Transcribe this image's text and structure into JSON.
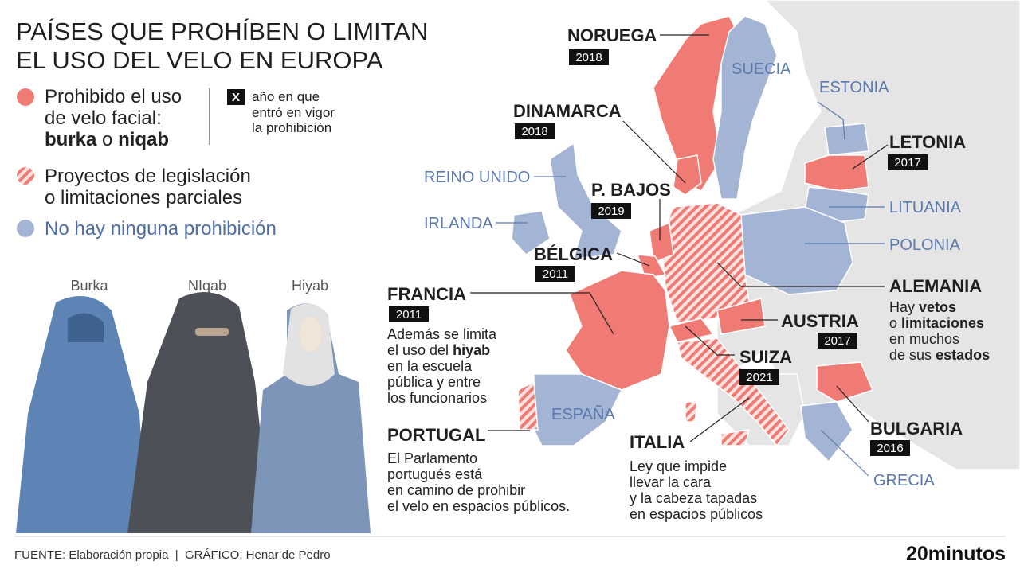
{
  "header": {
    "title_lines": [
      "PAÍSES QUE PROHÍBEN O LIMITAN",
      "EL USO DEL VELO EN EUROPA"
    ]
  },
  "legend": {
    "banned": {
      "lines": [
        "Prohibido el uso",
        "de velo facial:"
      ],
      "term1": "burka",
      "connector": "o",
      "term2": "niqab"
    },
    "year_key": {
      "symbol": "X",
      "lines": [
        "año en que",
        "entró en vigor",
        "la prohibición"
      ]
    },
    "partial": {
      "lines": [
        "Proyectos de legislación",
        "o limitaciones parciales"
      ]
    },
    "none": "No hay ninguna prohibición"
  },
  "garments": [
    "Burka",
    "NIqab",
    "Hiyab"
  ],
  "banned_countries": [
    {
      "name": "NORUEGA",
      "year": "2018"
    },
    {
      "name": "DINAMARCA",
      "year": "2018"
    },
    {
      "name": "LETONIA",
      "year": "2017"
    },
    {
      "name": "P. BAJOS",
      "year": "2019"
    },
    {
      "name": "BÉLGICA",
      "year": "2011"
    },
    {
      "name": "FRANCIA",
      "year": "2011"
    },
    {
      "name": "AUSTRIA",
      "year": "2017"
    },
    {
      "name": "SUIZA",
      "year": "2021"
    },
    {
      "name": "BULGARIA",
      "year": "2016"
    }
  ],
  "france_note": {
    "line1": "Además se limita",
    "line2_start": "el uso del",
    "line2_bold": "hiyab",
    "lines": [
      "en la escuela",
      "pública y entre",
      "los funcionarios"
    ]
  },
  "germany": {
    "name": "ALEMANIA",
    "w1": "Hay",
    "b1": "vetos",
    "w2": "o",
    "b2": "limitaciones",
    "w3": "en muchos",
    "w4": "de sus",
    "b3": "estados"
  },
  "portugal": {
    "name": "PORTUGAL",
    "note_lines": [
      "El Parlamento",
      "portugués está",
      "en camino de prohibir",
      "el velo en espacios públicos."
    ]
  },
  "italy": {
    "name": "ITALIA",
    "note_lines": [
      "Ley que impide",
      "llevar la cara",
      "y la cabeza tapadas",
      "en espacios públicos"
    ]
  },
  "unrestricted_countries": [
    "SUECIA",
    "ESTONIA",
    "LITUANIA",
    "POLONIA",
    "REINO UNIDO",
    "IRLANDA",
    "ESPAÑA",
    "GRECIA"
  ],
  "footer": {
    "source": "FUENTE: Elaboración propia  |  GRÁFICO: Henar de Pedro",
    "brand": "20minutos"
  }
}
